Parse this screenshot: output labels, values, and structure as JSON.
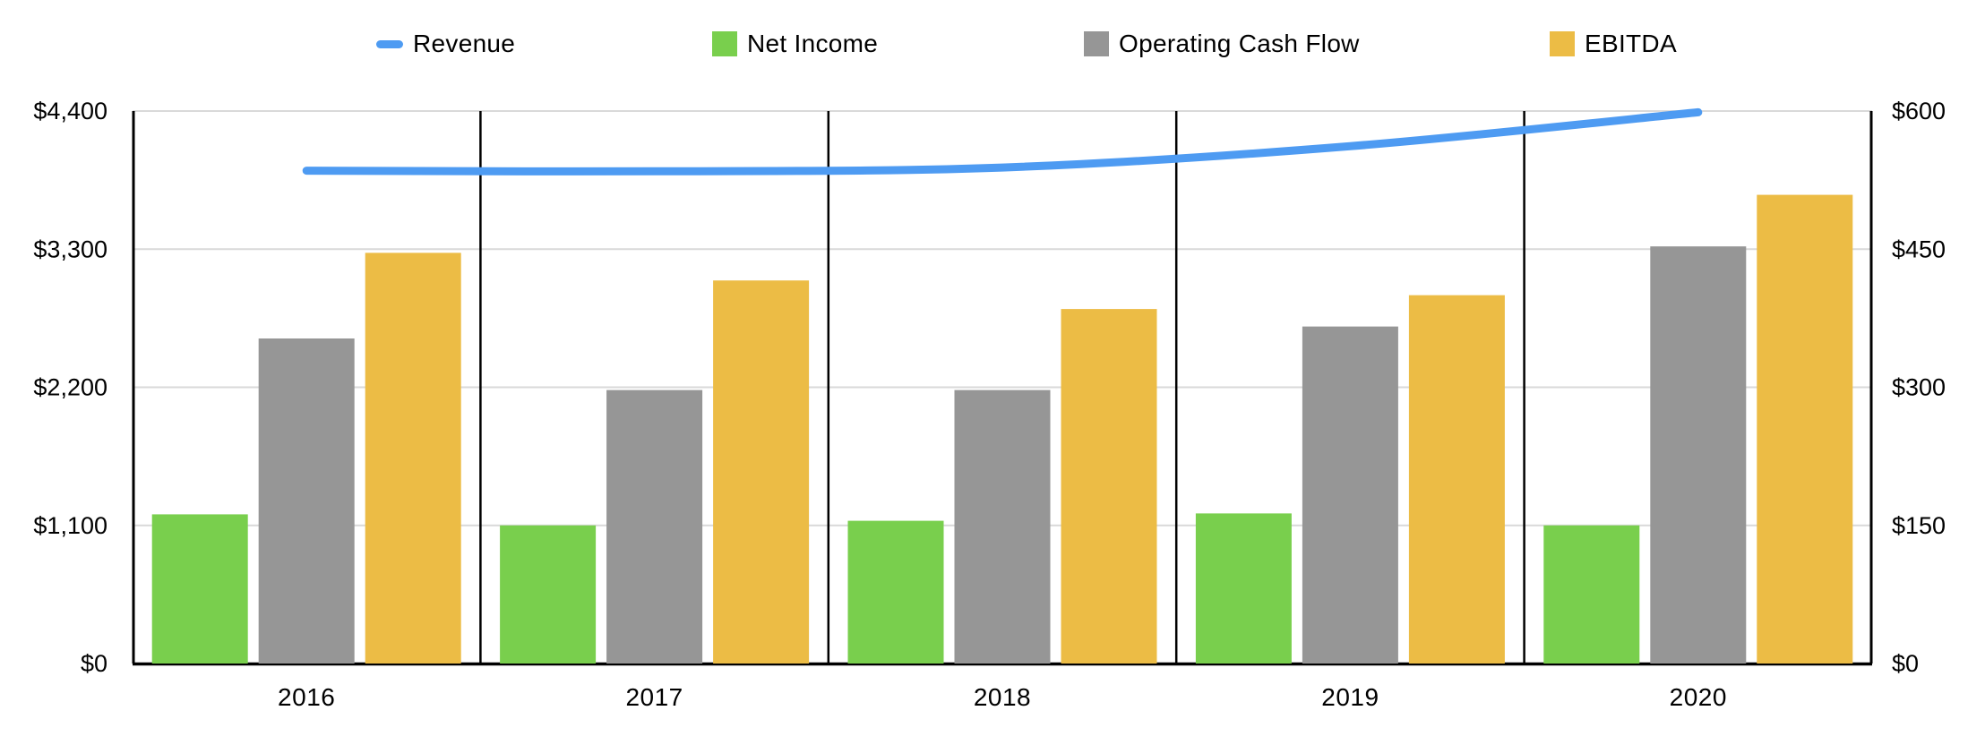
{
  "chart_data": {
    "type": "combo",
    "title": "",
    "legend_position": "top",
    "categories": [
      "2016",
      "2017",
      "2018",
      "2019",
      "2020"
    ],
    "series": [
      {
        "name": "Revenue",
        "type": "line",
        "axis": "left",
        "color": "#4E9BF2",
        "marker": "line-dash",
        "values": [
          3925,
          3920,
          3950,
          4120,
          4390
        ]
      },
      {
        "name": "Net Income",
        "type": "bar",
        "axis": "right",
        "color": "#79CF4D",
        "marker": "square",
        "values": [
          162,
          150,
          155,
          163,
          150
        ]
      },
      {
        "name": "Operating Cash Flow",
        "type": "bar",
        "axis": "right",
        "color": "#969696",
        "marker": "square",
        "values": [
          353,
          297,
          297,
          366,
          453
        ]
      },
      {
        "name": "EBITDA",
        "type": "bar",
        "axis": "right",
        "color": "#ECBC45",
        "marker": "square",
        "values": [
          446,
          416,
          385,
          400,
          509
        ]
      }
    ],
    "left_axis": {
      "min": 0,
      "max": 4400,
      "tick_step": 1100,
      "ticks_top_to_bottom": [
        "$4,400",
        "$3,300",
        "$2,200",
        "$1,100",
        "$0"
      ]
    },
    "right_axis": {
      "min": 0,
      "max": 600,
      "tick_step": 150,
      "ticks_top_to_bottom": [
        "$600",
        "$450",
        "$300",
        "$150",
        "$0"
      ]
    },
    "grid": {
      "horizontal_major": true,
      "horizontal_minor": false,
      "gridline_color": "#d9d9d9",
      "category_separator_color": "#000000",
      "plot_border_color": "#000000"
    }
  }
}
